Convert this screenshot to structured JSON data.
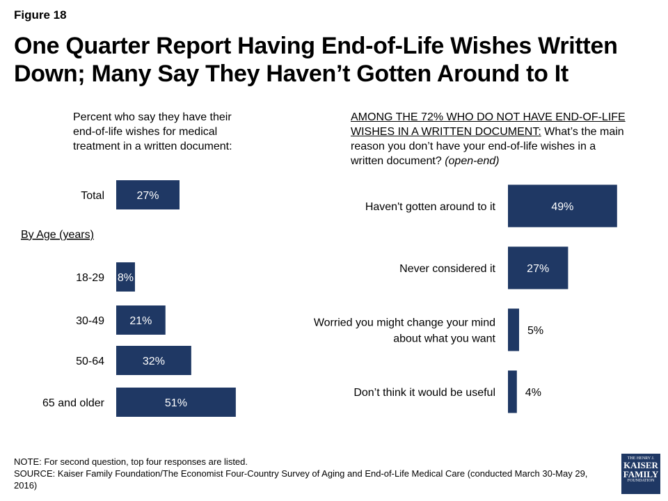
{
  "header": {
    "figure_label": "Figure 18",
    "title_line1": "One Quarter Report Having End-of-Life Wishes Written",
    "title_line2": "Down; Many Say They Haven’t Gotten Around to It"
  },
  "left_question": {
    "line1": "Percent who say they have their",
    "line2": "end-of-life wishes for medical",
    "line3": "treatment in a written document:"
  },
  "right_question": {
    "underlined_line1": "AMONG THE 72% WHO DO NOT HAVE END-OF-LIFE",
    "underlined_line2": "WISHES IN A WRITTEN DOCUMENT:",
    "text_line2": " What’s the main",
    "text_line3": "reason you don’t have your end-of-life wishes in a",
    "text_line4": "written document?",
    "italic": "(open-end)"
  },
  "colors": {
    "bar": "#1f3864",
    "bar_label_inside": "#ffffff",
    "bar_label_outside": "#000000"
  },
  "chart_data": [
    {
      "type": "bar",
      "orientation": "horizontal",
      "categories": [
        "Total",
        "18-29",
        "30-49",
        "50-64",
        "65 and older"
      ],
      "values": [
        27,
        8,
        21,
        32,
        51
      ],
      "value_labels": [
        "27%",
        "8%",
        "21%",
        "32%",
        "51%"
      ],
      "group_label": "By Age (years)",
      "unit": "%"
    },
    {
      "type": "bar",
      "orientation": "horizontal",
      "categories": [
        [
          "Haven't gotten around to it"
        ],
        [
          "Never considered it"
        ],
        [
          "Worried you might change your mind",
          "about what you want"
        ],
        [
          "Don’t think it would be useful"
        ]
      ],
      "values": [
        49,
        27,
        5,
        4
      ],
      "value_labels": [
        "49%",
        "27%",
        "5%",
        "4%"
      ],
      "unit": "%"
    }
  ],
  "footer": {
    "note": "NOTE: For second question, top four responses are listed.",
    "source": "SOURCE: Kaiser Family Foundation/The Economist Four-Country Survey of Aging and End-of-Life Medical Care (conducted March 30-May 29, 2016)"
  },
  "logo": {
    "line1": "THE HENRY J.",
    "line2": "KAISER",
    "line3": "FAMILY",
    "line4": "FOUNDATION"
  }
}
